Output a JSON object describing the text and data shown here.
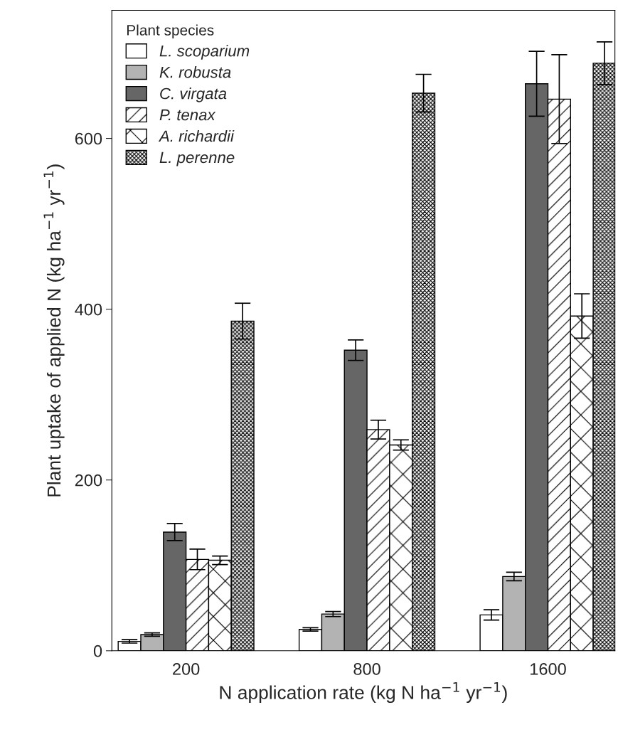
{
  "chart_data": {
    "type": "bar",
    "xlabel": "N application rate (kg N ha$^{−1}$ yr$^{−1}$)",
    "ylabel": "Plant uptake of applied N (kg ha$^{−1}$ yr$^{−1}$)",
    "legend_title": "Plant species",
    "categories": [
      "200",
      "800",
      "1600"
    ],
    "series": [
      {
        "name": "L. scoparium",
        "color": "#ffffff",
        "values": [
          11,
          25,
          42
        ],
        "errors": [
          2,
          2,
          6
        ]
      },
      {
        "name": "K. robusta",
        "color": "#b3b3b3",
        "values": [
          19,
          43,
          87
        ],
        "errors": [
          2,
          3,
          5
        ]
      },
      {
        "name": "C. virgata",
        "color": "#666666",
        "values": [
          139,
          352,
          664
        ],
        "errors": [
          10,
          12,
          38
        ]
      },
      {
        "name": "P. tenax",
        "color": "#ffffff",
        "values": [
          107,
          259,
          646
        ],
        "errors": [
          12,
          11,
          52
        ]
      },
      {
        "name": "A. richardii",
        "color": "#ffffff",
        "values": [
          106,
          241,
          392
        ],
        "errors": [
          5,
          6,
          26
        ]
      },
      {
        "name": "L. perenne",
        "color": "#ffffff",
        "values": [
          386,
          653,
          688
        ],
        "errors": [
          21,
          22,
          25
        ]
      }
    ],
    "ylim": [
      0,
      750
    ],
    "yticks": [
      0,
      200,
      400,
      600
    ],
    "legend": "top left",
    "grid": false
  }
}
